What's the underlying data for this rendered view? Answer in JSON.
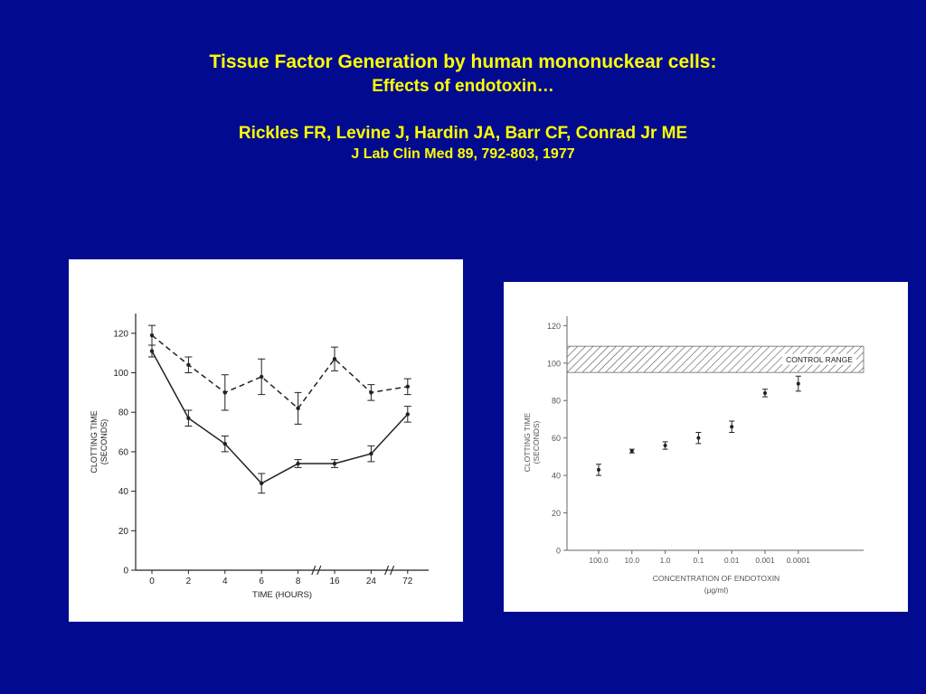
{
  "slide": {
    "title_line1": "Tissue Factor Generation  by human mononuckear cells:",
    "title_line2": "Effects of endotoxin…",
    "authors": "Rickles FR, Levine J, Hardin JA, Barr CF, Conrad Jr ME",
    "citation": "J Lab Clin Med 89, 792-803, 1977"
  },
  "colors": {
    "background": "#020b8f",
    "title": "#ffff00",
    "panel": "#ffffff",
    "ink": "#222222"
  },
  "chart_data": [
    {
      "type": "line",
      "title": "",
      "xlabel": "TIME (HOURS)",
      "ylabel": "CLOTTING TIME (SECONDS)",
      "ylabel_line1": "CLOTTING TIME",
      "ylabel_line2": "(SECONDS)",
      "categories": [
        "0",
        "2",
        "4",
        "6",
        "8",
        "16",
        "24",
        "72"
      ],
      "yticks": [
        "0",
        "20",
        "40",
        "60",
        "80",
        "100",
        "120"
      ],
      "ylim": [
        0,
        130
      ],
      "grid": false,
      "series": [
        {
          "style": "dashed",
          "values": [
            119,
            104,
            90,
            98,
            82,
            107,
            90,
            93
          ],
          "errors": [
            5,
            4,
            9,
            9,
            8,
            6,
            4,
            4
          ]
        },
        {
          "style": "solid",
          "values": [
            111,
            77,
            64,
            44,
            54,
            54,
            59,
            79
          ],
          "errors": [
            3,
            4,
            4,
            5,
            2,
            2,
            4,
            4
          ]
        }
      ]
    },
    {
      "type": "scatter",
      "title": "",
      "xlabel_line1": "CONCENTRATION OF ENDOTOXIN",
      "xlabel_line2": "(μg/ml)",
      "ylabel": "CLOTTING TIME (SECONDS)",
      "ylabel_line1": "CLOTTING TIME",
      "ylabel_line2": "(SECONDS)",
      "categories": [
        "100.0",
        "10.0",
        "1.0",
        "0.1",
        "0.01",
        "0.001",
        "0.0001"
      ],
      "values": [
        43,
        53,
        56,
        60,
        66,
        84,
        89
      ],
      "errors": [
        3,
        1,
        2,
        3,
        3,
        2,
        4
      ],
      "yticks": [
        "0",
        "20",
        "40",
        "60",
        "80",
        "100",
        "120"
      ],
      "ylim": [
        0,
        125
      ],
      "band": {
        "label": "CONTROL RANGE",
        "from": 95,
        "to": 109
      },
      "grid": false
    }
  ]
}
